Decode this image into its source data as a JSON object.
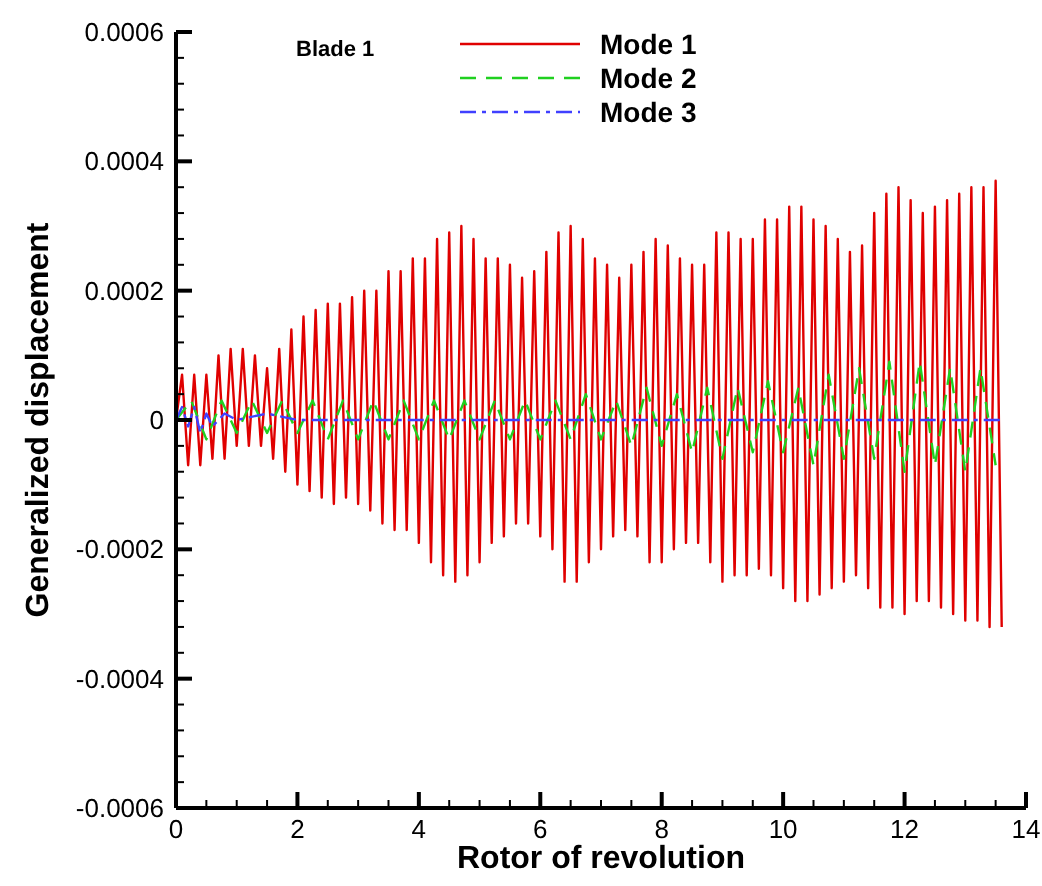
{
  "chart_data": {
    "type": "line",
    "xlabel": "Rotor of revolution",
    "ylabel": "Generalized displacement",
    "annotations": [
      "Blade 1"
    ],
    "xlim": [
      0,
      14
    ],
    "ylim": [
      -0.0006,
      0.0006
    ],
    "xticks": [
      0,
      {
        "value": 0.5,
        "label": null
      },
      2,
      {
        "value": 1,
        "label": null
      },
      {
        "value": 1.5,
        "label": null
      },
      {
        "value": 2.5,
        "label": null
      },
      {
        "value": 3,
        "label": null
      },
      {
        "value": 3.5,
        "label": null
      },
      4,
      {
        "value": 4.5,
        "label": null
      },
      {
        "value": 5,
        "label": null
      },
      {
        "value": 5.5,
        "label": null
      },
      6,
      {
        "value": 6.5,
        "label": null
      },
      {
        "value": 7,
        "label": null
      },
      {
        "value": 7.5,
        "label": null
      },
      8,
      {
        "value": 8.5,
        "label": null
      },
      {
        "value": 9,
        "label": null
      },
      {
        "value": 9.5,
        "label": null
      },
      10,
      {
        "value": 10.5,
        "label": null
      },
      {
        "value": 11,
        "label": null
      },
      {
        "value": 11.5,
        "label": null
      },
      12,
      {
        "value": 12.5,
        "label": null
      },
      {
        "value": 13,
        "label": null
      },
      {
        "value": 13.5,
        "label": null
      },
      14
    ],
    "yticks": [
      -0.0006,
      {
        "value": -0.00056,
        "label": null
      },
      {
        "value": -0.00052,
        "label": null
      },
      {
        "value": -0.00048,
        "label": null
      },
      {
        "value": -0.00044,
        "label": null
      },
      -0.0004,
      {
        "value": -0.00036,
        "label": null
      },
      {
        "value": -0.00032,
        "label": null
      },
      {
        "value": -0.00028,
        "label": null
      },
      {
        "value": -0.00024,
        "label": null
      },
      -0.0002,
      {
        "value": -0.00016,
        "label": null
      },
      {
        "value": -0.00012,
        "label": null
      },
      {
        "value": -8e-05,
        "label": null
      },
      {
        "value": -4e-05,
        "label": null
      },
      0,
      {
        "value": 4e-05,
        "label": null
      },
      {
        "value": 8e-05,
        "label": null
      },
      {
        "value": 0.00012,
        "label": null
      },
      {
        "value": 0.00016,
        "label": null
      },
      0.0002,
      {
        "value": 0.00024,
        "label": null
      },
      {
        "value": 0.00028,
        "label": null
      },
      {
        "value": 0.00032,
        "label": null
      },
      {
        "value": 0.00036,
        "label": null
      },
      0.0004,
      {
        "value": 0.00044,
        "label": null
      },
      {
        "value": 0.00048,
        "label": null
      },
      {
        "value": 0.00052,
        "label": null
      },
      {
        "value": 0.00056,
        "label": null
      },
      0.0006
    ],
    "grid": false,
    "legend": "top",
    "series": [
      {
        "name": "Mode 1",
        "color": "#e00000",
        "line_style": "solid",
        "x": [
          0,
          0.1,
          0.2,
          0.3,
          0.4,
          0.5,
          0.6,
          0.7,
          0.8,
          0.9,
          1.0,
          1.1,
          1.2,
          1.3,
          1.4,
          1.5,
          1.6,
          1.7,
          1.8,
          1.9,
          2.0,
          2.1,
          2.2,
          2.3,
          2.4,
          2.5,
          2.6,
          2.7,
          2.8,
          2.9,
          3.0,
          3.1,
          3.2,
          3.3,
          3.4,
          3.5,
          3.6,
          3.7,
          3.8,
          3.9,
          4.0,
          4.1,
          4.2,
          4.3,
          4.4,
          4.5,
          4.6,
          4.7,
          4.8,
          4.9,
          5.0,
          5.1,
          5.2,
          5.3,
          5.4,
          5.5,
          5.6,
          5.7,
          5.8,
          5.9,
          6.0,
          6.1,
          6.2,
          6.3,
          6.4,
          6.5,
          6.6,
          6.7,
          6.8,
          6.9,
          7.0,
          7.1,
          7.2,
          7.3,
          7.4,
          7.5,
          7.6,
          7.7,
          7.8,
          7.9,
          8.0,
          8.1,
          8.2,
          8.3,
          8.4,
          8.5,
          8.6,
          8.7,
          8.8,
          8.9,
          9.0,
          9.1,
          9.2,
          9.3,
          9.4,
          9.5,
          9.6,
          9.7,
          9.8,
          9.9,
          10.0,
          10.1,
          10.2,
          10.3,
          10.4,
          10.5,
          10.6,
          10.7,
          10.8,
          10.9,
          11.0,
          11.1,
          11.2,
          11.3,
          11.4,
          11.5,
          11.6,
          11.7,
          11.8,
          11.9,
          12.0,
          12.1,
          12.2,
          12.3,
          12.4,
          12.5,
          12.6,
          12.7,
          12.8,
          12.9,
          13.0,
          13.1,
          13.2,
          13.3,
          13.4,
          13.5,
          13.6
        ],
        "values": [
          0,
          7e-05,
          -7e-05,
          7e-05,
          -7e-05,
          7e-05,
          -6e-05,
          0.0001,
          -6e-05,
          0.00011,
          -4e-05,
          0.00011,
          -4e-05,
          0.0001,
          -4e-05,
          8e-05,
          -6e-05,
          0.00011,
          -8e-05,
          0.00014,
          -0.0001,
          0.00016,
          -0.00011,
          0.00017,
          -0.00012,
          0.00018,
          -0.00013,
          0.00018,
          -0.00012,
          0.00019,
          -0.00013,
          0.0002,
          -0.00014,
          0.0002,
          -0.00016,
          0.00023,
          -0.00017,
          0.00023,
          -0.00017,
          0.00025,
          -0.00019,
          0.00025,
          -0.00022,
          0.00028,
          -0.00024,
          0.00029,
          -0.00025,
          0.0003,
          -0.00024,
          0.00028,
          -0.00022,
          0.00025,
          -0.00019,
          0.00025,
          -0.00018,
          0.00024,
          -0.00016,
          0.00022,
          -0.00016,
          0.00023,
          -0.00018,
          0.00026,
          -0.0002,
          0.00029,
          -0.00025,
          0.0003,
          -0.00025,
          0.00028,
          -0.00022,
          0.00025,
          -0.0002,
          0.00024,
          -0.00018,
          0.00022,
          -0.00017,
          0.00024,
          -0.00018,
          0.00026,
          -0.00022,
          0.00028,
          -0.00022,
          0.00027,
          -0.0002,
          0.00025,
          -0.00019,
          0.00024,
          -0.00019,
          0.00024,
          -0.00022,
          0.00029,
          -0.00025,
          0.00029,
          -0.00024,
          0.00028,
          -0.00024,
          0.00028,
          -0.00023,
          0.00031,
          -0.00024,
          0.00031,
          -0.00026,
          0.00033,
          -0.00028,
          0.00033,
          -0.00028,
          0.00031,
          -0.00027,
          0.0003,
          -0.00026,
          0.00028,
          -0.00025,
          0.00026,
          -0.00024,
          0.00027,
          -0.00026,
          0.00032,
          -0.00029,
          0.00035,
          -0.00029,
          0.00036,
          -0.0003,
          0.00034,
          -0.00028,
          0.00032,
          -0.00028,
          0.00033,
          -0.00029,
          0.00034,
          -0.0003,
          0.00035,
          -0.00031,
          0.00036,
          -0.00031,
          0.00036,
          -0.00032,
          0.00037,
          -0.00032
        ]
      },
      {
        "name": "Mode 2",
        "color": "#20d020",
        "line_style": "dashed",
        "x": [
          0,
          0.25,
          0.5,
          0.75,
          1,
          1.25,
          1.5,
          1.75,
          2,
          2.25,
          2.5,
          2.75,
          3,
          3.25,
          3.5,
          3.75,
          4,
          4.25,
          4.5,
          4.75,
          5,
          5.25,
          5.5,
          5.75,
          6,
          6.25,
          6.5,
          6.75,
          7,
          7.25,
          7.5,
          7.75,
          8,
          8.25,
          8.5,
          8.75,
          9,
          9.25,
          9.5,
          9.75,
          10,
          10.25,
          10.5,
          10.75,
          11,
          11.25,
          11.5,
          11.75,
          12,
          12.25,
          12.5,
          12.75,
          13,
          13.25,
          13.5
        ],
        "values": [
          0,
          3e-05,
          -3e-05,
          3e-05,
          -2e-05,
          3e-05,
          -2e-05,
          3e-05,
          -2e-05,
          3e-05,
          -3e-05,
          3e-05,
          -3e-05,
          3e-05,
          -3e-05,
          3e-05,
          -3e-05,
          3e-05,
          -3e-05,
          3e-05,
          -3e-05,
          3e-05,
          -3e-05,
          3e-05,
          -3e-05,
          3e-05,
          -3e-05,
          4e-05,
          -3e-05,
          3e-05,
          -4e-05,
          5e-05,
          -4e-05,
          4e-05,
          -5e-05,
          5e-05,
          -6e-05,
          5e-05,
          -5e-05,
          6e-05,
          -5e-05,
          5e-05,
          -7e-05,
          7e-05,
          -6e-05,
          8e-05,
          -6e-05,
          9e-05,
          -8e-05,
          9e-05,
          -7e-05,
          8e-05,
          -8e-05,
          8e-05,
          -7e-05
        ]
      },
      {
        "name": "Mode 3",
        "color": "#4040ff",
        "line_style": "dashdot",
        "x": [
          0,
          0.1,
          0.2,
          0.3,
          0.4,
          0.5,
          0.6,
          0.8,
          1,
          1.5,
          2,
          3,
          4,
          5,
          6,
          7,
          8,
          9,
          10,
          11,
          12,
          13,
          13.6
        ],
        "values": [
          0,
          2e-05,
          -1e-05,
          2e-05,
          -2e-05,
          1e-05,
          -1e-05,
          1e-05,
          0,
          1e-05,
          0,
          0,
          0,
          0,
          0,
          0,
          0,
          0,
          0,
          0,
          0,
          0,
          0
        ]
      }
    ]
  }
}
